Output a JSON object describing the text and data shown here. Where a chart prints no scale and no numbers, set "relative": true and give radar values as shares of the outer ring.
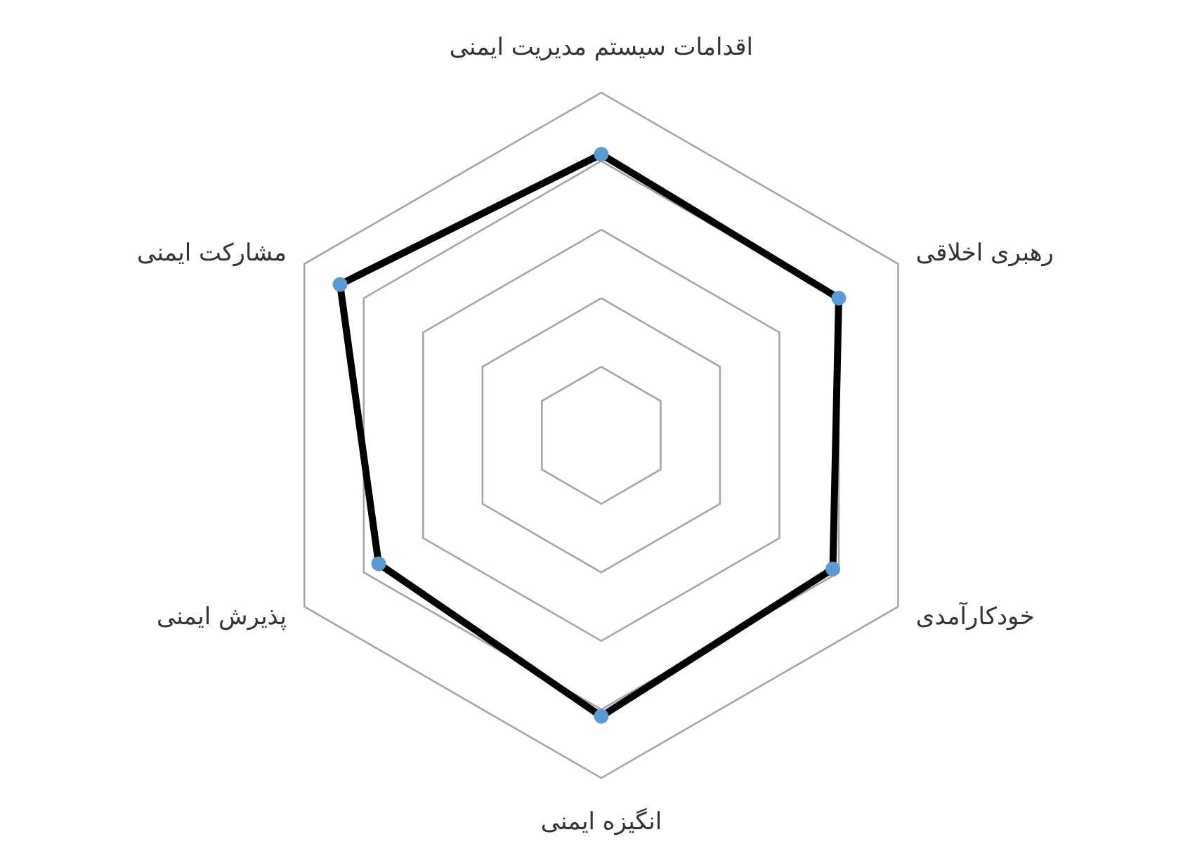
{
  "chart_data": {
    "type": "radar",
    "relative": true,
    "grid": true,
    "marker": "circle",
    "line_style": "solid",
    "categories": [
      "اقدامات سیستم مدیریت ایمنی",
      "رهبری اخلاقی",
      "خودکارآمدی",
      "انگیزه ایمنی",
      "پذیرش ایمنی",
      "مشارکت ایمنی"
    ],
    "series": [
      {
        "color": "#000000",
        "values": [
          0.82,
          0.8,
          0.78,
          0.82,
          0.75,
          0.88
        ]
      }
    ]
  }
}
